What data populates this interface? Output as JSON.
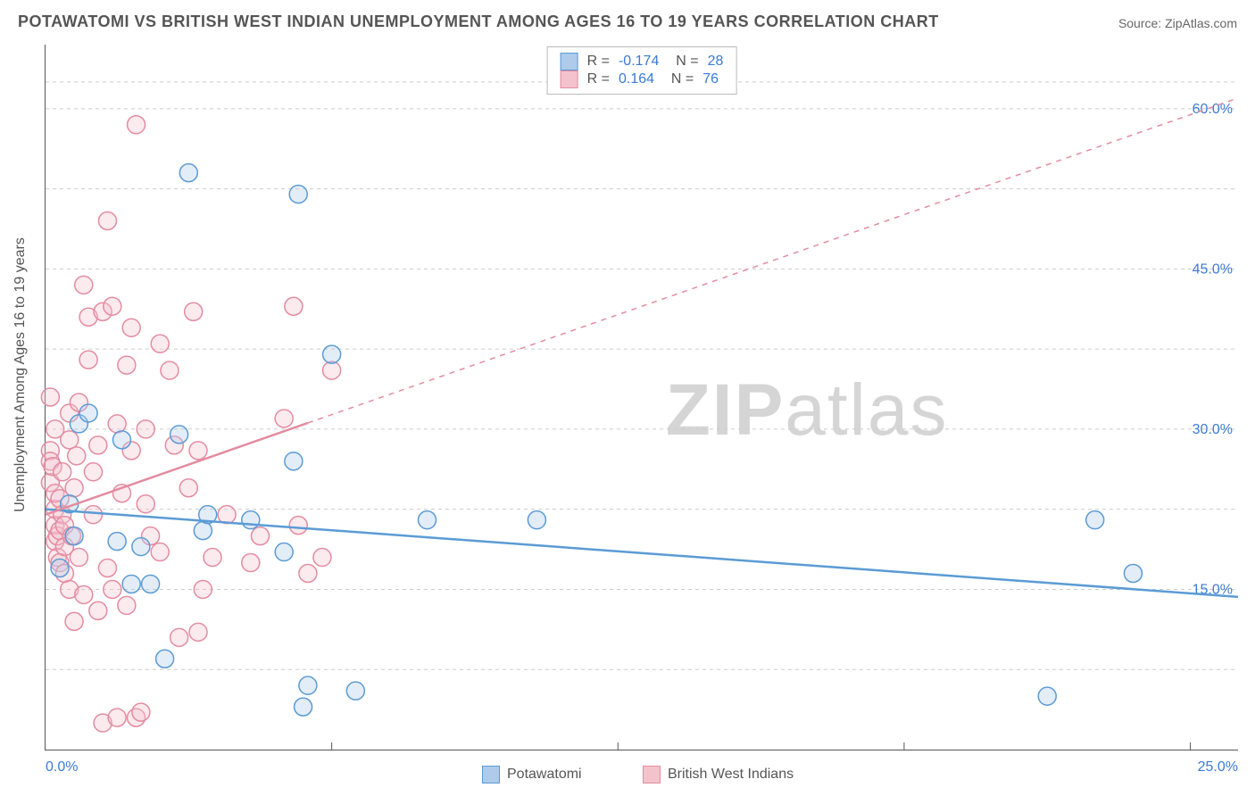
{
  "title": "POTAWATOMI VS BRITISH WEST INDIAN UNEMPLOYMENT AMONG AGES 16 TO 19 YEARS CORRELATION CHART",
  "source": "Source: ZipAtlas.com",
  "ylabel": "Unemployment Among Ages 16 to 19 years",
  "watermark_a": "ZIP",
  "watermark_b": "atlas",
  "chart": {
    "type": "scatter",
    "xlim": [
      0,
      25
    ],
    "ylim": [
      0,
      66
    ],
    "x_ticks": [
      0.0,
      25.0
    ],
    "x_tick_labels": [
      "0.0%",
      "25.0%"
    ],
    "x_minor_ticks": [
      6.0,
      12.0,
      18.0,
      24.0
    ],
    "y_ticks": [
      15.0,
      30.0,
      45.0,
      60.0
    ],
    "y_tick_labels": [
      "15.0%",
      "30.0%",
      "45.0%",
      "60.0%"
    ],
    "y_minor_grid": [
      7.5,
      22.5,
      37.5,
      52.5,
      62.5
    ],
    "background_color": "#ffffff",
    "grid_color": "#cccccc",
    "axis_color": "#555555",
    "tick_label_color": "#3a7bd5",
    "marker_radius": 10,
    "marker_stroke_width": 1.5,
    "marker_fill_opacity": 0.35,
    "series": [
      {
        "name": "Potawatomi",
        "color": "#5b9bd5",
        "fill": "#aecbeb",
        "R": "-0.174",
        "N": "28",
        "trend": {
          "x1": 0.0,
          "y1": 22.5,
          "x2": 25.0,
          "y2": 14.3,
          "dashed_from_x": null
        },
        "points": [
          [
            0.3,
            17.0
          ],
          [
            0.5,
            23.0
          ],
          [
            0.6,
            20.0
          ],
          [
            0.7,
            30.5
          ],
          [
            0.9,
            31.5
          ],
          [
            1.5,
            19.5
          ],
          [
            1.6,
            29.0
          ],
          [
            1.8,
            15.5
          ],
          [
            2.0,
            19.0
          ],
          [
            2.2,
            15.5
          ],
          [
            2.5,
            8.5
          ],
          [
            2.8,
            29.5
          ],
          [
            3.0,
            54.0
          ],
          [
            3.3,
            20.5
          ],
          [
            3.4,
            22.0
          ],
          [
            4.3,
            21.5
          ],
          [
            5.2,
            27.0
          ],
          [
            5.0,
            18.5
          ],
          [
            5.3,
            52.0
          ],
          [
            5.4,
            4.0
          ],
          [
            5.5,
            6.0
          ],
          [
            6.0,
            37.0
          ],
          [
            6.5,
            5.5
          ],
          [
            8.0,
            21.5
          ],
          [
            10.3,
            21.5
          ],
          [
            21.0,
            5.0
          ],
          [
            22.0,
            21.5
          ],
          [
            22.8,
            16.5
          ]
        ]
      },
      {
        "name": "British West Indians",
        "color": "#e38ca0",
        "fill": "#f4c2cd",
        "R": "0.164",
        "N": "76",
        "trend": {
          "x1": 0.0,
          "y1": 22.0,
          "x2": 25.0,
          "y2": 61.0,
          "dashed_from_x": 5.5
        },
        "points": [
          [
            0.1,
            33.0
          ],
          [
            0.1,
            28.0
          ],
          [
            0.1,
            27.0
          ],
          [
            0.1,
            25.0
          ],
          [
            0.15,
            26.5
          ],
          [
            0.2,
            21.0
          ],
          [
            0.2,
            22.5
          ],
          [
            0.2,
            19.5
          ],
          [
            0.2,
            24.0
          ],
          [
            0.2,
            30.0
          ],
          [
            0.25,
            20.0
          ],
          [
            0.25,
            18.0
          ],
          [
            0.3,
            17.5
          ],
          [
            0.3,
            23.5
          ],
          [
            0.3,
            20.5
          ],
          [
            0.35,
            26.0
          ],
          [
            0.35,
            22.0
          ],
          [
            0.4,
            16.5
          ],
          [
            0.4,
            19.0
          ],
          [
            0.4,
            21.0
          ],
          [
            0.5,
            31.5
          ],
          [
            0.5,
            29.0
          ],
          [
            0.5,
            15.0
          ],
          [
            0.55,
            20.0
          ],
          [
            0.6,
            24.5
          ],
          [
            0.6,
            12.0
          ],
          [
            0.65,
            27.5
          ],
          [
            0.7,
            32.5
          ],
          [
            0.7,
            18.0
          ],
          [
            0.8,
            43.5
          ],
          [
            0.8,
            14.5
          ],
          [
            0.9,
            36.5
          ],
          [
            0.9,
            40.5
          ],
          [
            1.0,
            26.0
          ],
          [
            1.0,
            22.0
          ],
          [
            1.1,
            28.5
          ],
          [
            1.1,
            13.0
          ],
          [
            1.2,
            41.0
          ],
          [
            1.2,
            2.5
          ],
          [
            1.3,
            17.0
          ],
          [
            1.3,
            49.5
          ],
          [
            1.4,
            41.5
          ],
          [
            1.4,
            15.0
          ],
          [
            1.5,
            30.5
          ],
          [
            1.5,
            3.0
          ],
          [
            1.6,
            24.0
          ],
          [
            1.7,
            13.5
          ],
          [
            1.7,
            36.0
          ],
          [
            1.8,
            39.5
          ],
          [
            1.8,
            28.0
          ],
          [
            1.9,
            58.5
          ],
          [
            1.9,
            3.0
          ],
          [
            2.0,
            3.5
          ],
          [
            2.1,
            23.0
          ],
          [
            2.1,
            30.0
          ],
          [
            2.2,
            20.0
          ],
          [
            2.4,
            18.5
          ],
          [
            2.4,
            38.0
          ],
          [
            2.6,
            35.5
          ],
          [
            2.7,
            28.5
          ],
          [
            2.8,
            10.5
          ],
          [
            3.0,
            24.5
          ],
          [
            3.1,
            41.0
          ],
          [
            3.2,
            28.0
          ],
          [
            3.2,
            11.0
          ],
          [
            3.3,
            15.0
          ],
          [
            3.5,
            18.0
          ],
          [
            3.8,
            22.0
          ],
          [
            4.3,
            17.5
          ],
          [
            4.5,
            20.0
          ],
          [
            5.0,
            31.0
          ],
          [
            5.2,
            41.5
          ],
          [
            5.3,
            21.0
          ],
          [
            5.5,
            16.5
          ],
          [
            5.8,
            18.0
          ],
          [
            6.0,
            35.5
          ]
        ]
      }
    ]
  },
  "legend": {
    "items": [
      {
        "label": "Potawatomi",
        "swatch_fill": "#aecbeb",
        "swatch_border": "#5b9bd5"
      },
      {
        "label": "British West Indians",
        "swatch_fill": "#f4c2cd",
        "swatch_border": "#e38ca0"
      }
    ]
  }
}
